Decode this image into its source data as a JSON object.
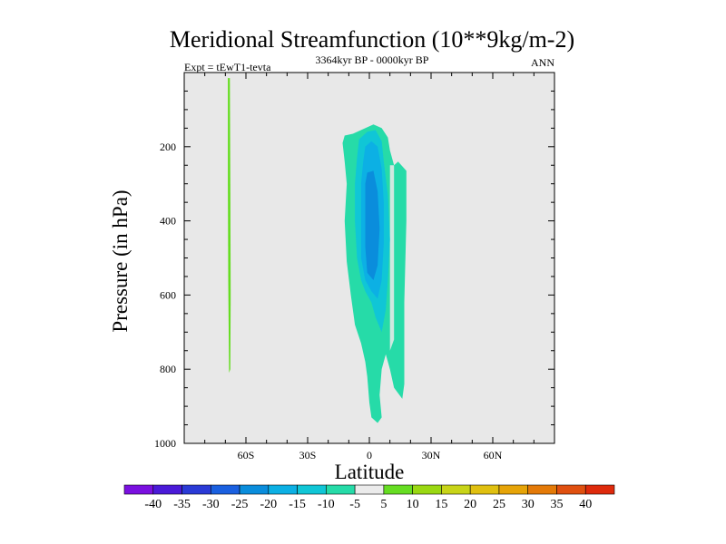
{
  "chart_data": {
    "type": "contour",
    "title": "Meridional Streamfunction (10**9kg/m-2)",
    "left_subtitle": "Expt = tEwT1-tevta",
    "center_subtitle": "3364kyr BP - 0000kyr BP",
    "right_subtitle": "ANN",
    "xlabel": "Latitude",
    "ylabel": "Pressure (in hPa)",
    "x_range": [
      -90,
      90
    ],
    "y_range": [
      1000,
      0
    ],
    "x_ticks": [
      {
        "value": -60,
        "label": "60S"
      },
      {
        "value": -30,
        "label": "30S"
      },
      {
        "value": 0,
        "label": "0"
      },
      {
        "value": 30,
        "label": "30N"
      },
      {
        "value": 60,
        "label": "60N"
      }
    ],
    "y_ticks": [
      {
        "value": 200,
        "label": "200"
      },
      {
        "value": 400,
        "label": "400"
      },
      {
        "value": 600,
        "label": "600"
      },
      {
        "value": 800,
        "label": "800"
      },
      {
        "value": 1000,
        "label": "1000"
      }
    ],
    "background_color": "#e8e8e8",
    "contour_regions": [
      {
        "name": "tropical-cell-outer",
        "level": -10,
        "color": "#26dba8",
        "points": [
          [
            -12,
            170
          ],
          [
            -8,
            165
          ],
          [
            2,
            140
          ],
          [
            6,
            150
          ],
          [
            9,
            175
          ],
          [
            10,
            210
          ],
          [
            12,
            250
          ],
          [
            14,
            240
          ],
          [
            18,
            265
          ],
          [
            18,
            400
          ],
          [
            17,
            620
          ],
          [
            17,
            840
          ],
          [
            16,
            880
          ],
          [
            12,
            850
          ],
          [
            10,
            800
          ],
          [
            8,
            760
          ],
          [
            6,
            800
          ],
          [
            5,
            870
          ],
          [
            6,
            930
          ],
          [
            4,
            945
          ],
          [
            1,
            930
          ],
          [
            0,
            890
          ],
          [
            -1,
            820
          ],
          [
            -2,
            780
          ],
          [
            -4,
            730
          ],
          [
            -7,
            680
          ],
          [
            -9,
            600
          ],
          [
            -11,
            510
          ],
          [
            -12,
            400
          ],
          [
            -11,
            300
          ],
          [
            -12,
            240
          ],
          [
            -13,
            190
          ]
        ]
      },
      {
        "name": "tropical-cell-right-band",
        "level": -5,
        "color": "#cfe8e0",
        "points": [
          [
            10,
            250
          ],
          [
            12,
            250
          ],
          [
            12,
            720
          ],
          [
            10,
            750
          ]
        ]
      },
      {
        "name": "tropical-cell-15",
        "level": -15,
        "color": "#10c6d6",
        "points": [
          [
            -5,
            180
          ],
          [
            -1,
            160
          ],
          [
            3,
            155
          ],
          [
            6,
            185
          ],
          [
            7,
            240
          ],
          [
            9,
            330
          ],
          [
            10,
            450
          ],
          [
            9,
            560
          ],
          [
            8,
            640
          ],
          [
            6,
            700
          ],
          [
            3,
            660
          ],
          [
            1,
            620
          ],
          [
            -2,
            590
          ],
          [
            -4,
            560
          ],
          [
            -6,
            500
          ],
          [
            -7,
            400
          ],
          [
            -7,
            300
          ],
          [
            -6,
            230
          ]
        ]
      },
      {
        "name": "tropical-cell-20",
        "level": -20,
        "color": "#0cb0e4",
        "points": [
          [
            -2,
            200
          ],
          [
            1,
            185
          ],
          [
            4,
            200
          ],
          [
            6,
            260
          ],
          [
            7,
            350
          ],
          [
            7,
            460
          ],
          [
            6,
            560
          ],
          [
            4,
            610
          ],
          [
            1,
            590
          ],
          [
            -2,
            560
          ],
          [
            -4,
            500
          ],
          [
            -4,
            400
          ],
          [
            -4,
            300
          ],
          [
            -3,
            240
          ]
        ]
      },
      {
        "name": "tropical-cell-25",
        "level": -25,
        "color": "#0a8ddc",
        "points": [
          [
            -1,
            270
          ],
          [
            2,
            265
          ],
          [
            4,
            320
          ],
          [
            5,
            420
          ],
          [
            4,
            520
          ],
          [
            2,
            560
          ],
          [
            -1,
            540
          ],
          [
            -2,
            470
          ],
          [
            -2,
            380
          ],
          [
            -2,
            300
          ]
        ]
      },
      {
        "name": "southern-high-lat-line",
        "level": 5,
        "color": "#66dd22",
        "points": [
          [
            -68.8,
            15
          ],
          [
            -67.8,
            15
          ],
          [
            -67.6,
            300
          ],
          [
            -67.4,
            600
          ],
          [
            -67.6,
            800
          ],
          [
            -68.2,
            810
          ],
          [
            -68.6,
            560
          ],
          [
            -68.8,
            300
          ]
        ]
      }
    ],
    "colorbar": {
      "levels": [
        -40,
        -35,
        -30,
        -25,
        -20,
        -15,
        -10,
        -5,
        5,
        10,
        15,
        20,
        25,
        30,
        35,
        40
      ],
      "colors": [
        "#7a10e0",
        "#4a1ad8",
        "#2a3ad6",
        "#1a60e0",
        "#0a8ddc",
        "#0cb0e4",
        "#10c6d6",
        "#26dba8",
        "#ebebeb",
        "#66dd22",
        "#9ad812",
        "#c8d418",
        "#e0c010",
        "#e6a408",
        "#e47a08",
        "#e05010",
        "#de2a0c"
      ]
    }
  }
}
